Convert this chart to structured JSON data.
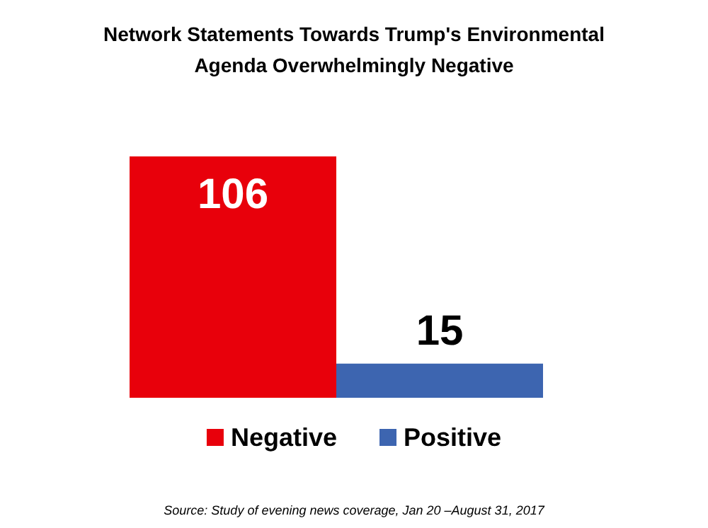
{
  "chart_data": {
    "type": "bar",
    "title": "Network Statements Towards Trump's Environmental\nAgenda Overwhelmingly Negative",
    "categories": [
      null
    ],
    "series": [
      {
        "name": "Negative",
        "color": "#e8000b",
        "values": [
          106
        ]
      },
      {
        "name": "Positive",
        "color": "#3d65b0",
        "values": [
          15
        ]
      }
    ],
    "data_labels": true,
    "legend": "bottom",
    "annotations": [
      "Source: Study of evening news coverage, Jan 20 –August 31, 2017"
    ]
  }
}
